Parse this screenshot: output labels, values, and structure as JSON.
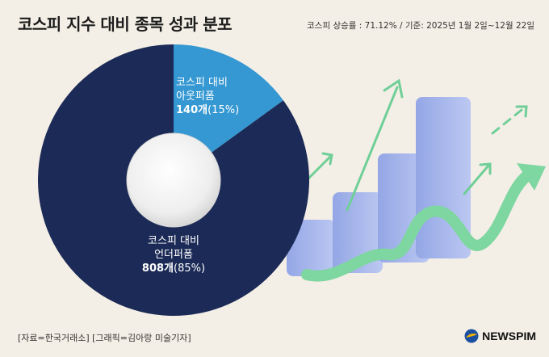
{
  "header": {
    "title": "코스피 지수 대비 종목 성과 분포",
    "subtitle": "코스피 상승률 : 71.12% / 기준: 2025년 1월 2일~12월 22일"
  },
  "chart_data": {
    "type": "pie",
    "donut": true,
    "title": "코스피 지수 대비 종목 성과 분포",
    "slices": [
      {
        "label_line1": "코스피 대비",
        "label_line2": "아웃퍼폼",
        "count": "140개",
        "percent": "(15%)",
        "value": 15,
        "color": "#3598d2"
      },
      {
        "label_line1": "코스피 대비",
        "label_line2": "언더퍼폼",
        "count": "808개",
        "percent": "(85%)",
        "value": 85,
        "color": "#1b2a56"
      }
    ]
  },
  "footer": {
    "source": "[자료=한국거래소] [그래픽=김아랑 미술기자]",
    "brand": "NEWSPIM"
  }
}
